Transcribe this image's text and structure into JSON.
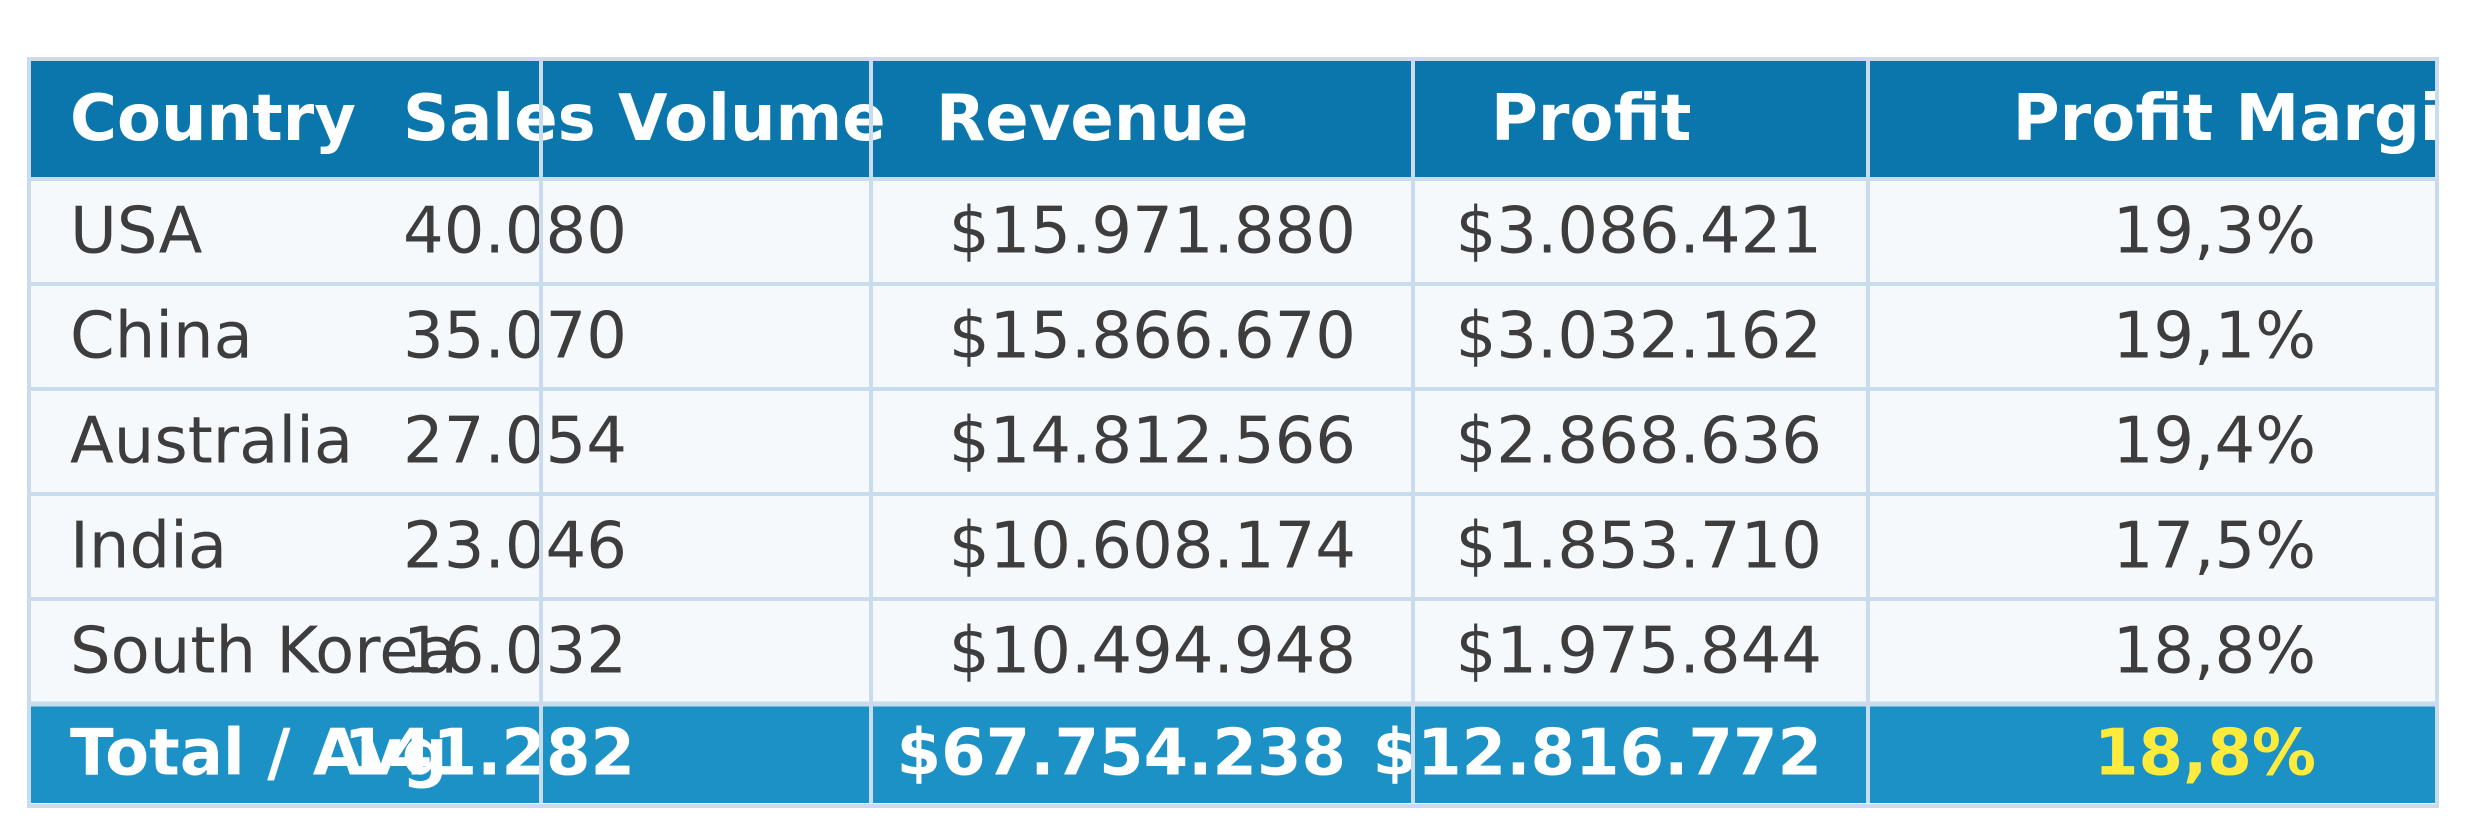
{
  "chart_data": {
    "type": "table",
    "columns": [
      "Country",
      "Sales Volume",
      "Revenue",
      "Profit",
      "Profit Margin"
    ],
    "rows": [
      [
        "USA",
        "40.080",
        "$15.971.880",
        "$3.086.421",
        "19,3%"
      ],
      [
        "China",
        "35.070",
        "$15.866.670",
        "$3.032.162",
        "19,1%"
      ],
      [
        "Australia",
        "27.054",
        "$14.812.566",
        "$2.868.636",
        "19,4%"
      ],
      [
        "India",
        "23.046",
        "$10.608.174",
        "$1.853.710",
        "17,5%"
      ],
      [
        "South Korea",
        "16.032",
        "$10.494.948",
        "$1.975.844",
        "18,8%"
      ]
    ],
    "total_row": [
      "Total / Avg",
      "141.282",
      "$67.754.238",
      "$12.816.772",
      "18,8%"
    ],
    "colors": {
      "header_bg": "#0b76ab",
      "total_bg": "#1b91c6",
      "body_bg": "#f5f9fc",
      "grid": "#c8dced",
      "body_text": "#3d3d3d",
      "header_text": "#ffffff",
      "highlight_text": "#ffeb3b"
    }
  }
}
